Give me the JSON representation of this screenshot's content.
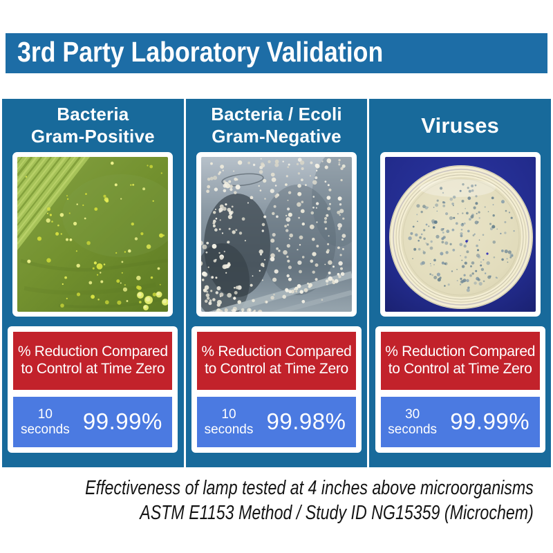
{
  "header": {
    "title": "3rd Party Laboratory Validation"
  },
  "columns": [
    {
      "id": "gram-positive",
      "title_line1": "Bacteria",
      "title_line2": "Gram-Positive",
      "label_line1": "% Reduction Compared",
      "label_line2": "to Control at Time Zero",
      "time_value": "10",
      "time_unit": "seconds",
      "result": "99.99%"
    },
    {
      "id": "gram-negative",
      "title_line1": "Bacteria / Ecoli",
      "title_line2": "Gram-Negative",
      "label_line1": "% Reduction Compared",
      "label_line2": "to Control at Time Zero",
      "time_value": "10",
      "time_unit": "seconds",
      "result": "99.98%"
    },
    {
      "id": "viruses",
      "title_line1": "Viruses",
      "title_line2": "",
      "label_line1": "% Reduction Compared",
      "label_line2": "to Control at Time Zero",
      "time_value": "30",
      "time_unit": "seconds",
      "result": "99.99%"
    }
  ],
  "footer": {
    "line1": "Effectiveness of lamp tested at 4 inches above microorganisms",
    "line2": "ASTM E1153 Method / Study ID NG15359 (Microchem)"
  },
  "colors": {
    "header_blue": "#1d6da6",
    "panel_blue": "#186a9b",
    "label_red": "#c2222b",
    "result_blue": "#4b7ae1",
    "virus_background_navy": "#222b8c",
    "text_white": "#ffffff"
  }
}
